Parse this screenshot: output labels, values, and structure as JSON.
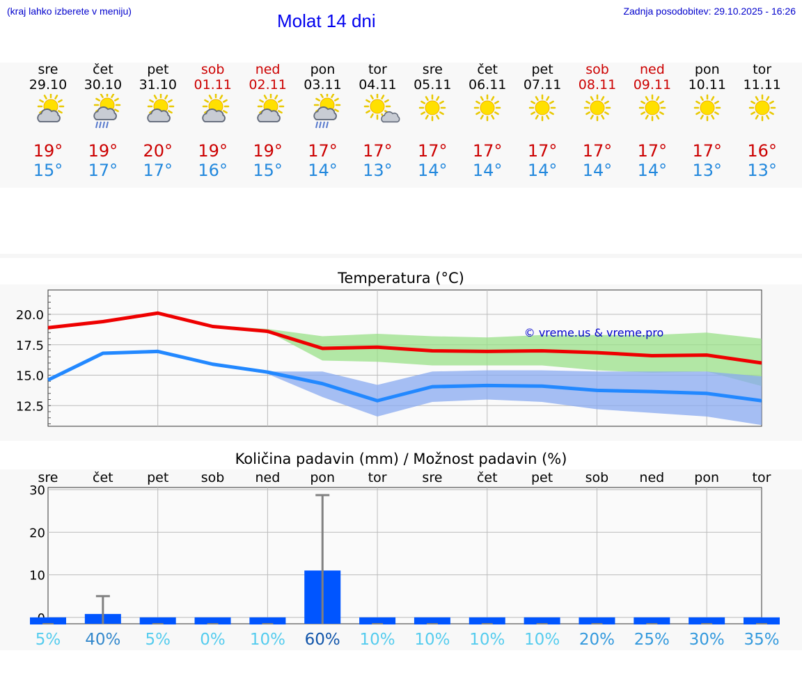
{
  "header": {
    "hint": "(kraj lahko izberete v meniju)",
    "title": "Molat 14 dni",
    "updated": "Zadnja posodobitev: 29.10.2025 - 16:26"
  },
  "colors": {
    "weekend": "#cc0000",
    "max_temp": "#cc0000",
    "min_temp": "#2288dd",
    "max_line": "#ee0000",
    "min_line": "#2288ff",
    "bar": "#0055ff"
  },
  "days": [
    {
      "name": "sre",
      "date": "29.10",
      "icon": "sun-cloud-icon",
      "max": "19°",
      "min": "15°",
      "weekend": false
    },
    {
      "name": "čet",
      "date": "30.10",
      "icon": "sun-rain-icon",
      "max": "19°",
      "min": "17°",
      "weekend": false
    },
    {
      "name": "pet",
      "date": "31.10",
      "icon": "sun-cloud-icon",
      "max": "20°",
      "min": "17°",
      "weekend": false
    },
    {
      "name": "sob",
      "date": "01.11",
      "icon": "sun-cloud-icon",
      "max": "19°",
      "min": "16°",
      "weekend": true
    },
    {
      "name": "ned",
      "date": "02.11",
      "icon": "sun-cloud-icon",
      "max": "19°",
      "min": "15°",
      "weekend": true
    },
    {
      "name": "pon",
      "date": "03.11",
      "icon": "sun-rain-icon",
      "max": "17°",
      "min": "14°",
      "weekend": false
    },
    {
      "name": "tor",
      "date": "04.11",
      "icon": "sun-small-cloud-icon",
      "max": "17°",
      "min": "13°",
      "weekend": false
    },
    {
      "name": "sre",
      "date": "05.11",
      "icon": "sun-icon",
      "max": "17°",
      "min": "14°",
      "weekend": false
    },
    {
      "name": "čet",
      "date": "06.11",
      "icon": "sun-icon",
      "max": "17°",
      "min": "14°",
      "weekend": false
    },
    {
      "name": "pet",
      "date": "07.11",
      "icon": "sun-icon",
      "max": "17°",
      "min": "14°",
      "weekend": false
    },
    {
      "name": "sob",
      "date": "08.11",
      "icon": "sun-icon",
      "max": "17°",
      "min": "14°",
      "weekend": true
    },
    {
      "name": "ned",
      "date": "09.11",
      "icon": "sun-icon",
      "max": "17°",
      "min": "14°",
      "weekend": true
    },
    {
      "name": "pon",
      "date": "10.11",
      "icon": "sun-icon",
      "max": "17°",
      "min": "13°",
      "weekend": false
    },
    {
      "name": "tor",
      "date": "11.11",
      "icon": "sun-icon",
      "max": "16°",
      "min": "13°",
      "weekend": false
    }
  ],
  "chart_data": [
    {
      "type": "line",
      "title": "Temperatura (°C)",
      "watermark": "© vreme.us & vreme.pro",
      "x": [
        0,
        1,
        2,
        3,
        4,
        5,
        6,
        7,
        8,
        9,
        10,
        11,
        12,
        13
      ],
      "ylim": [
        10.8,
        22.0
      ],
      "yticks": [
        12.5,
        15.0,
        17.5,
        20.0
      ],
      "ytick_labels": [
        "12.5",
        "15.0",
        "17.5",
        "20.0"
      ],
      "series": [
        {
          "name": "max",
          "values": [
            18.9,
            19.4,
            20.1,
            19.0,
            18.6,
            17.2,
            17.3,
            17.0,
            16.95,
            17.0,
            16.85,
            16.6,
            16.65,
            16.0
          ],
          "band_low": [
            18.9,
            19.4,
            20.0,
            19.0,
            18.6,
            16.2,
            16.1,
            15.8,
            15.8,
            15.8,
            15.4,
            15.2,
            15.3,
            14.1
          ],
          "band_high": [
            18.9,
            19.4,
            20.1,
            19.1,
            18.8,
            18.2,
            18.4,
            18.2,
            18.1,
            18.3,
            18.3,
            18.3,
            18.5,
            18.0
          ]
        },
        {
          "name": "min",
          "values": [
            14.6,
            16.8,
            16.95,
            15.9,
            15.25,
            14.3,
            12.9,
            14.05,
            14.15,
            14.1,
            13.75,
            13.65,
            13.5,
            12.9
          ],
          "band_low": [
            14.6,
            16.7,
            16.8,
            15.8,
            15.1,
            13.2,
            11.6,
            12.8,
            13.0,
            12.8,
            12.2,
            11.9,
            11.6,
            10.9
          ],
          "band_high": [
            14.7,
            16.9,
            17.1,
            16.0,
            15.3,
            15.3,
            14.2,
            15.3,
            15.4,
            15.4,
            15.3,
            15.3,
            15.3,
            14.9
          ]
        }
      ]
    },
    {
      "type": "bar",
      "title": "Količina padavin (mm) / Možnost padavin (%)",
      "categories": [
        "sre",
        "čet",
        "pet",
        "sob",
        "ned",
        "pon",
        "tor",
        "sre",
        "čet",
        "pet",
        "sob",
        "ned",
        "pon",
        "tor"
      ],
      "values": [
        0,
        0.8,
        0,
        0,
        0,
        11,
        0,
        0,
        0,
        0,
        0,
        0,
        0,
        0
      ],
      "error_high": [
        0,
        5,
        0,
        0,
        0,
        28.7,
        0,
        0,
        0,
        0,
        0,
        0,
        0,
        0
      ],
      "ylim": [
        -1.5,
        30.5
      ],
      "yticks": [
        0,
        10,
        20,
        30
      ],
      "ytick_labels": [
        "0",
        "10",
        "20",
        "30"
      ],
      "probabilities": [
        "5%",
        "40%",
        "5%",
        "0%",
        "10%",
        "60%",
        "10%",
        "10%",
        "10%",
        "10%",
        "20%",
        "25%",
        "30%",
        "35%"
      ],
      "probability_values": [
        5,
        40,
        5,
        0,
        10,
        60,
        10,
        10,
        10,
        10,
        20,
        25,
        30,
        35
      ]
    }
  ]
}
